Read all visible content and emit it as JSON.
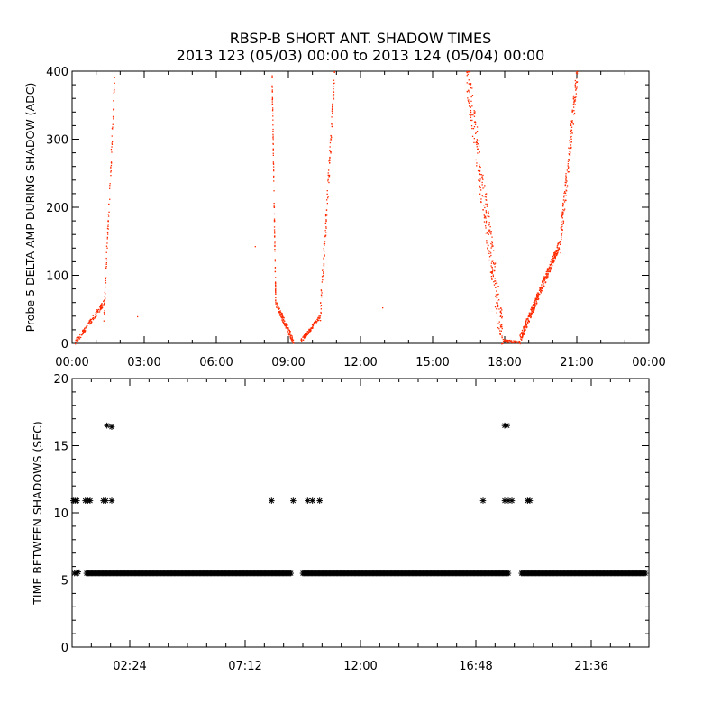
{
  "title": "RBSP-B SHORT ANT. SHADOW TIMES",
  "subtitle": "2013 123 (05/03) 00:00 to 2013 124 (05/04) 00:00",
  "colors": {
    "points_top": "#ff2a00",
    "points_bottom": "#000000",
    "axes": "#000000"
  },
  "chart_data": [
    {
      "type": "scatter",
      "ylabel": "Probe 5 DELTA AMP DURING SHADOW (ADC)",
      "xlabel": "",
      "xlim": [
        0,
        24
      ],
      "ylim": [
        0,
        400
      ],
      "x_unit": "hours since 2013-05-03 00:00",
      "xticks": [
        "00:00",
        "03:00",
        "06:00",
        "09:00",
        "12:00",
        "15:00",
        "18:00",
        "21:00",
        "00:00"
      ],
      "xtick_values": [
        0,
        3,
        6,
        9,
        12,
        15,
        18,
        21,
        24
      ],
      "yticks": [
        0,
        100,
        200,
        300,
        400
      ],
      "segments": [
        {
          "x0": 0.1,
          "x1": 1.3,
          "y0": 2,
          "y1": 60,
          "n": 120,
          "spread": 8
        },
        {
          "x0": 1.3,
          "x1": 1.75,
          "y0": 40,
          "y1": 385,
          "n": 90,
          "spread": 30
        },
        {
          "x0": 8.3,
          "x1": 8.45,
          "y0": 390,
          "y1": 60,
          "n": 100,
          "spread": 25
        },
        {
          "x0": 8.45,
          "x1": 9.2,
          "y0": 60,
          "y1": 3,
          "n": 120,
          "spread": 10
        },
        {
          "x0": 9.5,
          "x1": 10.3,
          "y0": 4,
          "y1": 40,
          "n": 100,
          "spread": 6
        },
        {
          "x0": 10.3,
          "x1": 10.9,
          "y0": 40,
          "y1": 390,
          "n": 130,
          "spread": 35
        },
        {
          "x0": 16.4,
          "x1": 17.9,
          "y0": 400,
          "y1": 5,
          "n": 280,
          "spread": 70
        },
        {
          "x0": 17.9,
          "x1": 18.6,
          "y0": 5,
          "y1": 2,
          "n": 60,
          "spread": 4
        },
        {
          "x0": 18.6,
          "x1": 20.3,
          "y0": 5,
          "y1": 150,
          "n": 360,
          "spread": 14
        },
        {
          "x0": 20.3,
          "x1": 21.0,
          "y0": 150,
          "y1": 400,
          "n": 160,
          "spread": 40
        }
      ],
      "isolated": [
        [
          2.7,
          40
        ],
        [
          7.6,
          143
        ],
        [
          12.9,
          53
        ]
      ]
    },
    {
      "type": "scatter",
      "ylabel": "TIME BETWEEN SHADOWS (SEC)",
      "xlabel": "",
      "xlim": [
        0,
        24
      ],
      "ylim": [
        0,
        20
      ],
      "x_unit": "hours since 2013-05-03 00:00",
      "xticks": [
        "02:24",
        "07:12",
        "12:00",
        "16:48",
        "21:36"
      ],
      "xtick_values": [
        2.4,
        7.2,
        12.0,
        16.8,
        21.6
      ],
      "yticks": [
        0,
        5,
        10,
        15,
        20
      ],
      "baseline": {
        "y": 5.5,
        "ranges": [
          [
            0.6,
            9.1
          ],
          [
            9.6,
            18.2
          ],
          [
            18.7,
            23.9
          ]
        ],
        "y_alt": 5.6
      },
      "early_points": [
        [
          0.1,
          5.5
        ],
        [
          0.2,
          5.5
        ],
        [
          0.25,
          5.6
        ]
      ],
      "points": [
        [
          0.05,
          10.9
        ],
        [
          0.12,
          10.9
        ],
        [
          0.2,
          10.9
        ],
        [
          0.55,
          10.9
        ],
        [
          0.65,
          10.9
        ],
        [
          0.75,
          10.9
        ],
        [
          1.3,
          10.9
        ],
        [
          1.4,
          10.9
        ],
        [
          1.65,
          10.9
        ],
        [
          1.45,
          16.5
        ],
        [
          1.65,
          16.4
        ],
        [
          8.3,
          10.9
        ],
        [
          9.2,
          10.9
        ],
        [
          9.8,
          10.9
        ],
        [
          10.0,
          10.9
        ],
        [
          10.3,
          10.9
        ],
        [
          17.1,
          10.9
        ],
        [
          18.0,
          16.5
        ],
        [
          18.1,
          16.5
        ],
        [
          18.0,
          10.9
        ],
        [
          18.15,
          10.9
        ],
        [
          18.3,
          10.9
        ],
        [
          18.95,
          10.9
        ],
        [
          19.05,
          10.9
        ]
      ]
    }
  ]
}
